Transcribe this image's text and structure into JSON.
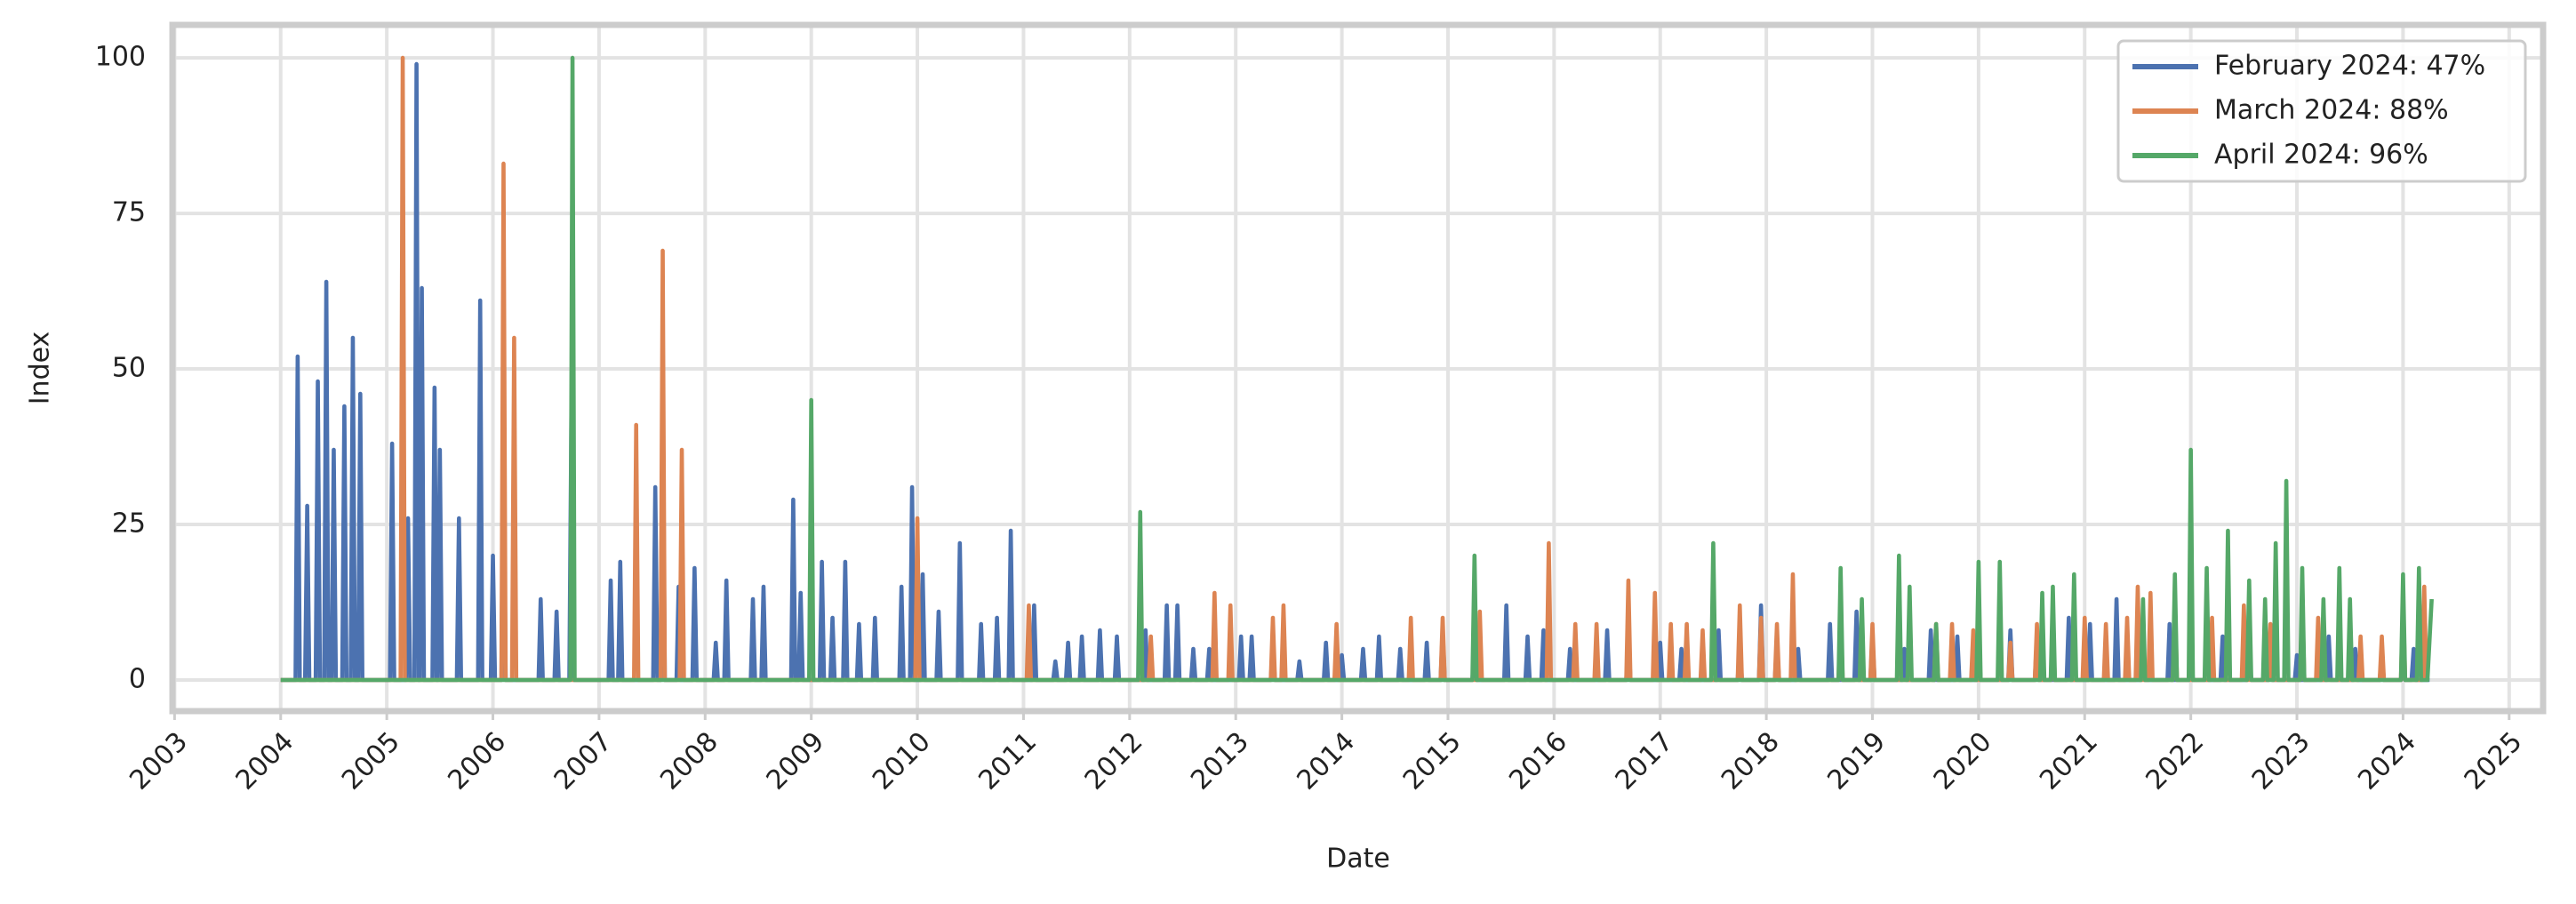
{
  "chart_data": {
    "type": "line",
    "x_label": "Date",
    "y_label": "Index",
    "xlim": [
      2002.98,
      2025.32
    ],
    "ylim": [
      -5,
      105.3
    ],
    "xticks": [
      2003,
      2004,
      2005,
      2006,
      2007,
      2008,
      2009,
      2010,
      2011,
      2012,
      2013,
      2014,
      2015,
      2016,
      2017,
      2018,
      2019,
      2020,
      2021,
      2022,
      2023,
      2024,
      2025
    ],
    "yticks": [
      0,
      25,
      50,
      75,
      100
    ],
    "grid": true,
    "legend": "upper right",
    "series": [
      {
        "name": "February 2024: 47%",
        "color": "#4c72b0",
        "x": [
          2004,
          2004.14,
          2004.16,
          2004.18,
          2004.23,
          2004.25,
          2004.27,
          2004.33,
          2004.35,
          2004.37,
          2004.41,
          2004.43,
          2004.45,
          2004.48,
          2004.5,
          2004.52,
          2004.58,
          2004.6,
          2004.62,
          2004.66,
          2004.68,
          2004.7,
          2004.73,
          2004.75,
          2004.77,
          2005.03,
          2005.05,
          2005.07,
          2005.18,
          2005.2,
          2005.22,
          2005.26,
          2005.28,
          2005.3,
          2005.31,
          2005.33,
          2005.35,
          2005.43,
          2005.45,
          2005.47,
          2005.48,
          2005.5,
          2005.52,
          2005.66,
          2005.68,
          2005.7,
          2005.86,
          2005.88,
          2005.9,
          2005.98,
          2006,
          2006.02,
          2006.08,
          2006.1,
          2006.12,
          2006.43,
          2006.45,
          2006.47,
          2006.58,
          2006.6,
          2006.62,
          2006.72,
          2006.74,
          2006.76,
          2007.09,
          2007.11,
          2007.13,
          2007.18,
          2007.2,
          2007.22,
          2007.51,
          2007.53,
          2007.55,
          2007.58,
          2007.6,
          2007.62,
          2007.73,
          2007.75,
          2007.77,
          2007.88,
          2007.9,
          2007.92,
          2008.08,
          2008.1,
          2008.12,
          2008.18,
          2008.2,
          2008.22,
          2008.43,
          2008.45,
          2008.47,
          2008.53,
          2008.55,
          2008.57,
          2008.81,
          2008.83,
          2008.85,
          2008.88,
          2008.9,
          2008.92,
          2009.08,
          2009.1,
          2009.12,
          2009.18,
          2009.2,
          2009.22,
          2009.3,
          2009.32,
          2009.34,
          2009.43,
          2009.45,
          2009.47,
          2009.58,
          2009.6,
          2009.62,
          2009.83,
          2009.85,
          2009.87,
          2009.93,
          2009.95,
          2009.97,
          2010.03,
          2010.05,
          2010.07,
          2010.18,
          2010.2,
          2010.22,
          2010.38,
          2010.4,
          2010.42,
          2010.58,
          2010.6,
          2010.62,
          2010.73,
          2010.75,
          2010.77,
          2010.86,
          2010.88,
          2010.9,
          2011.08,
          2011.1,
          2011.12,
          2011.28,
          2011.3,
          2011.32,
          2011.4,
          2011.42,
          2011.44,
          2011.53,
          2011.55,
          2011.57,
          2011.7,
          2011.72,
          2011.74,
          2011.86,
          2011.88,
          2011.9,
          2012.13,
          2012.15,
          2012.17,
          2012.33,
          2012.35,
          2012.37,
          2012.43,
          2012.45,
          2012.47,
          2012.58,
          2012.6,
          2012.62,
          2012.73,
          2012.75,
          2012.77,
          2013.03,
          2013.05,
          2013.07,
          2013.13,
          2013.15,
          2013.17,
          2013.33,
          2013.35,
          2013.37,
          2013.58,
          2013.6,
          2013.62,
          2013.83,
          2013.85,
          2013.87,
          2013.98,
          2014,
          2014.02,
          2014.18,
          2014.2,
          2014.22,
          2014.33,
          2014.35,
          2014.37,
          2014.53,
          2014.55,
          2014.57,
          2014.78,
          2014.8,
          2014.82,
          2014.93,
          2014.95,
          2014.97,
          2015.23,
          2015.25,
          2015.27,
          2015.53,
          2015.55,
          2015.57,
          2015.73,
          2015.75,
          2015.77,
          2015.88,
          2015.9,
          2015.92,
          2016.13,
          2016.15,
          2016.17,
          2016.48,
          2016.5,
          2016.52,
          2016.68,
          2016.7,
          2016.72,
          2016.98,
          2017,
          2017.02,
          2017.18,
          2017.2,
          2017.22,
          2017.53,
          2017.55,
          2017.57,
          2017.73,
          2017.75,
          2017.77,
          2017.93,
          2017.95,
          2017.97,
          2018.08,
          2018.1,
          2018.12,
          2018.28,
          2018.3,
          2018.32,
          2018.58,
          2018.6,
          2018.62,
          2018.83,
          2018.85,
          2018.87,
          2018.98,
          2019,
          2019.02,
          2019.28,
          2019.3,
          2019.32,
          2019.53,
          2019.55,
          2019.57,
          2019.78,
          2019.8,
          2019.82,
          2019.98,
          2020,
          2020.02,
          2020.28,
          2020.3,
          2020.32,
          2020.53,
          2020.55,
          2020.57,
          2020.83,
          2020.85,
          2020.87,
          2021.03,
          2021.05,
          2021.07,
          2021.28,
          2021.3,
          2021.32,
          2021.53,
          2021.55,
          2021.57,
          2021.78,
          2021.8,
          2021.82,
          2021.98,
          2022,
          2022.02,
          2022.28,
          2022.3,
          2022.32,
          2022.53,
          2022.55,
          2022.57,
          2022.73,
          2022.75,
          2022.77,
          2022.98,
          2023,
          2023.02,
          2023.28,
          2023.3,
          2023.32,
          2023.53,
          2023.55,
          2023.57,
          2023.78,
          2023.8,
          2023.82,
          2023.98,
          2024,
          2024.02,
          2024.08,
          2024.1,
          2024.12,
          2024.25
        ],
        "values": [
          0,
          0,
          52,
          0,
          0,
          28,
          0,
          0,
          48,
          0,
          0,
          64,
          0,
          0,
          37,
          0,
          0,
          44,
          0,
          0,
          55,
          0,
          0,
          46,
          0,
          0,
          38,
          0,
          0,
          26,
          0,
          0,
          99,
          0,
          0,
          63,
          0,
          0,
          47,
          0,
          0,
          37,
          0,
          0,
          26,
          0,
          0,
          61,
          0,
          0,
          20,
          0,
          0,
          43,
          0,
          0,
          13,
          0,
          0,
          11,
          0,
          0,
          44,
          0,
          0,
          16,
          0,
          0,
          19,
          0,
          0,
          31,
          0,
          0,
          48,
          0,
          0,
          15,
          0,
          0,
          18,
          0,
          0,
          6,
          0,
          0,
          16,
          0,
          0,
          13,
          0,
          0,
          15,
          0,
          0,
          29,
          0,
          0,
          14,
          0,
          0,
          19,
          0,
          0,
          10,
          0,
          0,
          19,
          0,
          0,
          9,
          0,
          0,
          10,
          0,
          0,
          15,
          0,
          0,
          31,
          0,
          0,
          17,
          0,
          0,
          11,
          0,
          0,
          22,
          0,
          0,
          9,
          0,
          0,
          10,
          0,
          0,
          24,
          0,
          0,
          12,
          0,
          0,
          3,
          0,
          0,
          6,
          0,
          0,
          7,
          0,
          0,
          8,
          0,
          0,
          7,
          0,
          0,
          8,
          0,
          0,
          12,
          0,
          0,
          12,
          0,
          0,
          5,
          0,
          0,
          5,
          0,
          0,
          7,
          0,
          0,
          7,
          0,
          0,
          5,
          0,
          0,
          3,
          0,
          0,
          6,
          0,
          0,
          4,
          0,
          0,
          5,
          0,
          0,
          7,
          0,
          0,
          5,
          0,
          0,
          6,
          0,
          0,
          8,
          0,
          0,
          6,
          0,
          0,
          12,
          0,
          0,
          7,
          0,
          0,
          8,
          0,
          0,
          5,
          0,
          0,
          8,
          0,
          0,
          7,
          0,
          0,
          6,
          0,
          0,
          5,
          0,
          0,
          8,
          0,
          0,
          6,
          0,
          0,
          12,
          0,
          0,
          6,
          0,
          0,
          5,
          0,
          0,
          9,
          0,
          0,
          11,
          0,
          0,
          7,
          0,
          0,
          5,
          0,
          0,
          8,
          0,
          0,
          7,
          0,
          0,
          6,
          0,
          0,
          8,
          0,
          0,
          7,
          0,
          0,
          10,
          0,
          0,
          9,
          0,
          0,
          13,
          0,
          0,
          8,
          0,
          0,
          9,
          0,
          0,
          6,
          0,
          0,
          7,
          0,
          0,
          5,
          0,
          0,
          6,
          0,
          0,
          4,
          0,
          0,
          7,
          0,
          0,
          5,
          0,
          0,
          4,
          0,
          0,
          3,
          0,
          0,
          5,
          0,
          0
        ]
      },
      {
        "name": "March 2024: 88%",
        "color": "#dd8452",
        "x": [
          2004,
          2005.13,
          2005.15,
          2005.17,
          2006.08,
          2006.1,
          2006.12,
          2006.18,
          2006.2,
          2006.22,
          2007.33,
          2007.35,
          2007.37,
          2007.58,
          2007.6,
          2007.62,
          2007.76,
          2007.78,
          2007.8,
          2009.98,
          2010,
          2010.02,
          2011.03,
          2011.05,
          2011.07,
          2012.18,
          2012.2,
          2012.22,
          2012.78,
          2012.8,
          2012.82,
          2012.93,
          2012.95,
          2012.97,
          2013.33,
          2013.35,
          2013.37,
          2013.43,
          2013.45,
          2013.47,
          2013.93,
          2013.95,
          2013.97,
          2014.63,
          2014.65,
          2014.67,
          2014.93,
          2014.95,
          2014.97,
          2015.28,
          2015.3,
          2015.32,
          2015.93,
          2015.95,
          2015.97,
          2016.18,
          2016.2,
          2016.22,
          2016.38,
          2016.4,
          2016.42,
          2016.68,
          2016.7,
          2016.72,
          2016.93,
          2016.95,
          2016.97,
          2017.08,
          2017.1,
          2017.12,
          2017.23,
          2017.25,
          2017.27,
          2017.38,
          2017.4,
          2017.42,
          2017.73,
          2017.75,
          2017.77,
          2017.93,
          2017.95,
          2017.97,
          2018.08,
          2018.1,
          2018.12,
          2018.23,
          2018.25,
          2018.27,
          2018.68,
          2018.7,
          2018.72,
          2018.98,
          2019,
          2019.02,
          2019.58,
          2019.6,
          2019.62,
          2019.73,
          2019.75,
          2019.77,
          2019.93,
          2019.95,
          2019.97,
          2020.28,
          2020.3,
          2020.32,
          2020.53,
          2020.55,
          2020.57,
          2020.68,
          2020.7,
          2020.72,
          2020.98,
          2021,
          2021.02,
          2021.18,
          2021.2,
          2021.22,
          2021.38,
          2021.4,
          2021.42,
          2021.48,
          2021.5,
          2021.52,
          2021.6,
          2021.62,
          2021.64,
          2021.83,
          2021.85,
          2021.87,
          2022.18,
          2022.2,
          2022.22,
          2022.48,
          2022.5,
          2022.52,
          2022.73,
          2022.75,
          2022.77,
          2023.03,
          2023.05,
          2023.07,
          2023.18,
          2023.2,
          2023.22,
          2023.58,
          2023.6,
          2023.62,
          2023.78,
          2023.8,
          2023.82,
          2023.98,
          2024,
          2024.02,
          2024.18,
          2024.2,
          2024.22
        ],
        "values": [
          0,
          0,
          100,
          0,
          0,
          83,
          0,
          0,
          55,
          0,
          0,
          41,
          0,
          0,
          69,
          0,
          0,
          37,
          0,
          0,
          26,
          0,
          0,
          12,
          0,
          0,
          7,
          0,
          0,
          14,
          0,
          0,
          12,
          0,
          0,
          10,
          0,
          0,
          12,
          0,
          0,
          9,
          0,
          0,
          10,
          0,
          0,
          10,
          0,
          0,
          11,
          0,
          0,
          22,
          0,
          0,
          9,
          0,
          0,
          9,
          0,
          0,
          16,
          0,
          0,
          14,
          0,
          0,
          9,
          0,
          0,
          9,
          0,
          0,
          8,
          0,
          0,
          12,
          0,
          0,
          10,
          0,
          0,
          9,
          0,
          0,
          17,
          0,
          0,
          11,
          0,
          0,
          9,
          0,
          0,
          9,
          0,
          0,
          9,
          0,
          0,
          8,
          0,
          0,
          6,
          0,
          0,
          9,
          0,
          0,
          8,
          0,
          0,
          10,
          0,
          0,
          9,
          0,
          0,
          10,
          0,
          0,
          15,
          0,
          0,
          14,
          0,
          0,
          13,
          0,
          0,
          10,
          0,
          0,
          12,
          0,
          0,
          9,
          0,
          0,
          13,
          0,
          0,
          10,
          0,
          0,
          7,
          0,
          0,
          7,
          0,
          0,
          13,
          0,
          0,
          15,
          0
        ]
      },
      {
        "name": "April 2024: 96%",
        "color": "#55a868",
        "x": [
          2004,
          2006.73,
          2006.75,
          2006.77,
          2008.98,
          2009,
          2009.02,
          2012.08,
          2012.1,
          2012.12,
          2015.23,
          2015.25,
          2015.27,
          2017.48,
          2017.5,
          2017.52,
          2018.68,
          2018.7,
          2018.72,
          2018.88,
          2018.9,
          2018.92,
          2019.23,
          2019.25,
          2019.27,
          2019.33,
          2019.35,
          2019.37,
          2019.58,
          2019.6,
          2019.62,
          2019.98,
          2020,
          2020.02,
          2020.18,
          2020.2,
          2020.22,
          2020.58,
          2020.6,
          2020.62,
          2020.68,
          2020.7,
          2020.72,
          2020.88,
          2020.9,
          2020.92,
          2021.53,
          2021.55,
          2021.57,
          2021.83,
          2021.85,
          2021.87,
          2021.98,
          2022,
          2022.02,
          2022.13,
          2022.15,
          2022.17,
          2022.33,
          2022.35,
          2022.37,
          2022.53,
          2022.55,
          2022.57,
          2022.68,
          2022.7,
          2022.72,
          2022.78,
          2022.8,
          2022.82,
          2022.88,
          2022.9,
          2022.92,
          2023.03,
          2023.05,
          2023.07,
          2023.23,
          2023.25,
          2023.27,
          2023.38,
          2023.4,
          2023.42,
          2023.48,
          2023.5,
          2023.52,
          2023.98,
          2024,
          2024.02,
          2024.13,
          2024.15,
          2024.17,
          2024.23,
          2024.27
        ],
        "values": [
          0,
          0,
          100,
          0,
          0,
          45,
          0,
          0,
          27,
          0,
          0,
          20,
          0,
          0,
          22,
          0,
          0,
          18,
          0,
          0,
          13,
          0,
          0,
          20,
          0,
          0,
          15,
          0,
          0,
          9,
          0,
          0,
          19,
          0,
          0,
          19,
          0,
          0,
          14,
          0,
          0,
          15,
          0,
          0,
          17,
          0,
          0,
          13,
          0,
          0,
          17,
          0,
          0,
          37,
          0,
          0,
          18,
          0,
          0,
          24,
          0,
          0,
          16,
          0,
          0,
          13,
          0,
          0,
          22,
          0,
          0,
          32,
          0,
          0,
          18,
          0,
          0,
          13,
          0,
          0,
          18,
          0,
          0,
          13,
          0,
          0,
          17,
          0,
          0,
          18,
          0,
          0,
          13
        ]
      }
    ]
  }
}
